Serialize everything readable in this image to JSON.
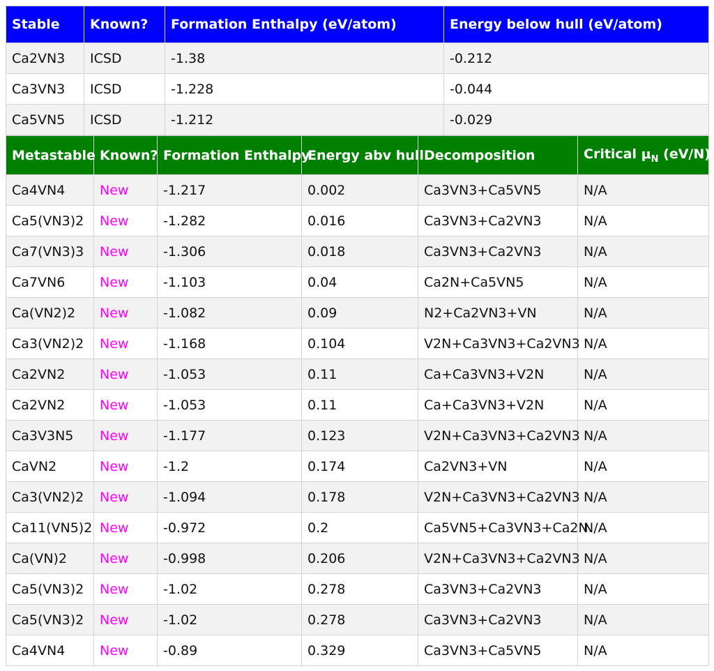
{
  "stable_table": {
    "headers": [
      "Stable",
      "Known?",
      "Formation Enthalpy (eV/atom)",
      "Energy below hull (eV/atom)"
    ],
    "rows": [
      [
        "Ca2VN3",
        "ICSD",
        "-1.38",
        "-0.212"
      ],
      [
        "Ca3VN3",
        "ICSD",
        "-1.228",
        "-0.044"
      ],
      [
        "Ca5VN5",
        "ICSD",
        "-1.212",
        "-0.029"
      ]
    ]
  },
  "metastable_table": {
    "headers": {
      "name": "Metastable",
      "known": "Known?",
      "enthalpy": "Formation Enthalpy",
      "above_hull": "Energy abv hull",
      "decomposition": "Decomposition",
      "critical_prefix": "Critical μ",
      "critical_sub": "N",
      "critical_unit": " (eV/N)"
    },
    "rows": [
      [
        "Ca4VN4",
        "New",
        "-1.217",
        "0.002",
        "Ca3VN3+Ca5VN5",
        "N/A"
      ],
      [
        "Ca5(VN3)2",
        "New",
        "-1.282",
        "0.016",
        "Ca3VN3+Ca2VN3",
        "N/A"
      ],
      [
        "Ca7(VN3)3",
        "New",
        "-1.306",
        "0.018",
        "Ca3VN3+Ca2VN3",
        "N/A"
      ],
      [
        "Ca7VN6",
        "New",
        "-1.103",
        "0.04",
        "Ca2N+Ca5VN5",
        "N/A"
      ],
      [
        "Ca(VN2)2",
        "New",
        "-1.082",
        "0.09",
        "N2+Ca2VN3+VN",
        "N/A"
      ],
      [
        "Ca3(VN2)2",
        "New",
        "-1.168",
        "0.104",
        "V2N+Ca3VN3+Ca2VN3",
        "N/A"
      ],
      [
        "Ca2VN2",
        "New",
        "-1.053",
        "0.11",
        "Ca+Ca3VN3+V2N",
        "N/A"
      ],
      [
        "Ca2VN2",
        "New",
        "-1.053",
        "0.11",
        "Ca+Ca3VN3+V2N",
        "N/A"
      ],
      [
        "Ca3V3N5",
        "New",
        "-1.177",
        "0.123",
        "V2N+Ca3VN3+Ca2VN3",
        "N/A"
      ],
      [
        "CaVN2",
        "New",
        "-1.2",
        "0.174",
        "Ca2VN3+VN",
        "N/A"
      ],
      [
        "Ca3(VN2)2",
        "New",
        "-1.094",
        "0.178",
        "V2N+Ca3VN3+Ca2VN3",
        "N/A"
      ],
      [
        "Ca11(VN5)2",
        "New",
        "-0.972",
        "0.2",
        "Ca5VN5+Ca3VN3+Ca2N",
        "N/A"
      ],
      [
        "Ca(VN)2",
        "New",
        "-0.998",
        "0.206",
        "V2N+Ca3VN3+Ca2VN3",
        "N/A"
      ],
      [
        "Ca5(VN3)2",
        "New",
        "-1.02",
        "0.278",
        "Ca3VN3+Ca2VN3",
        "N/A"
      ],
      [
        "Ca5(VN3)2",
        "New",
        "-1.02",
        "0.278",
        "Ca3VN3+Ca2VN3",
        "N/A"
      ],
      [
        "Ca4VN4",
        "New",
        "-0.89",
        "0.329",
        "Ca3VN3+Ca5VN5",
        "N/A"
      ]
    ]
  },
  "colors": {
    "stable_header": "#0000ff",
    "metastable_header": "#008000",
    "new_label": "#ff00ff"
  }
}
